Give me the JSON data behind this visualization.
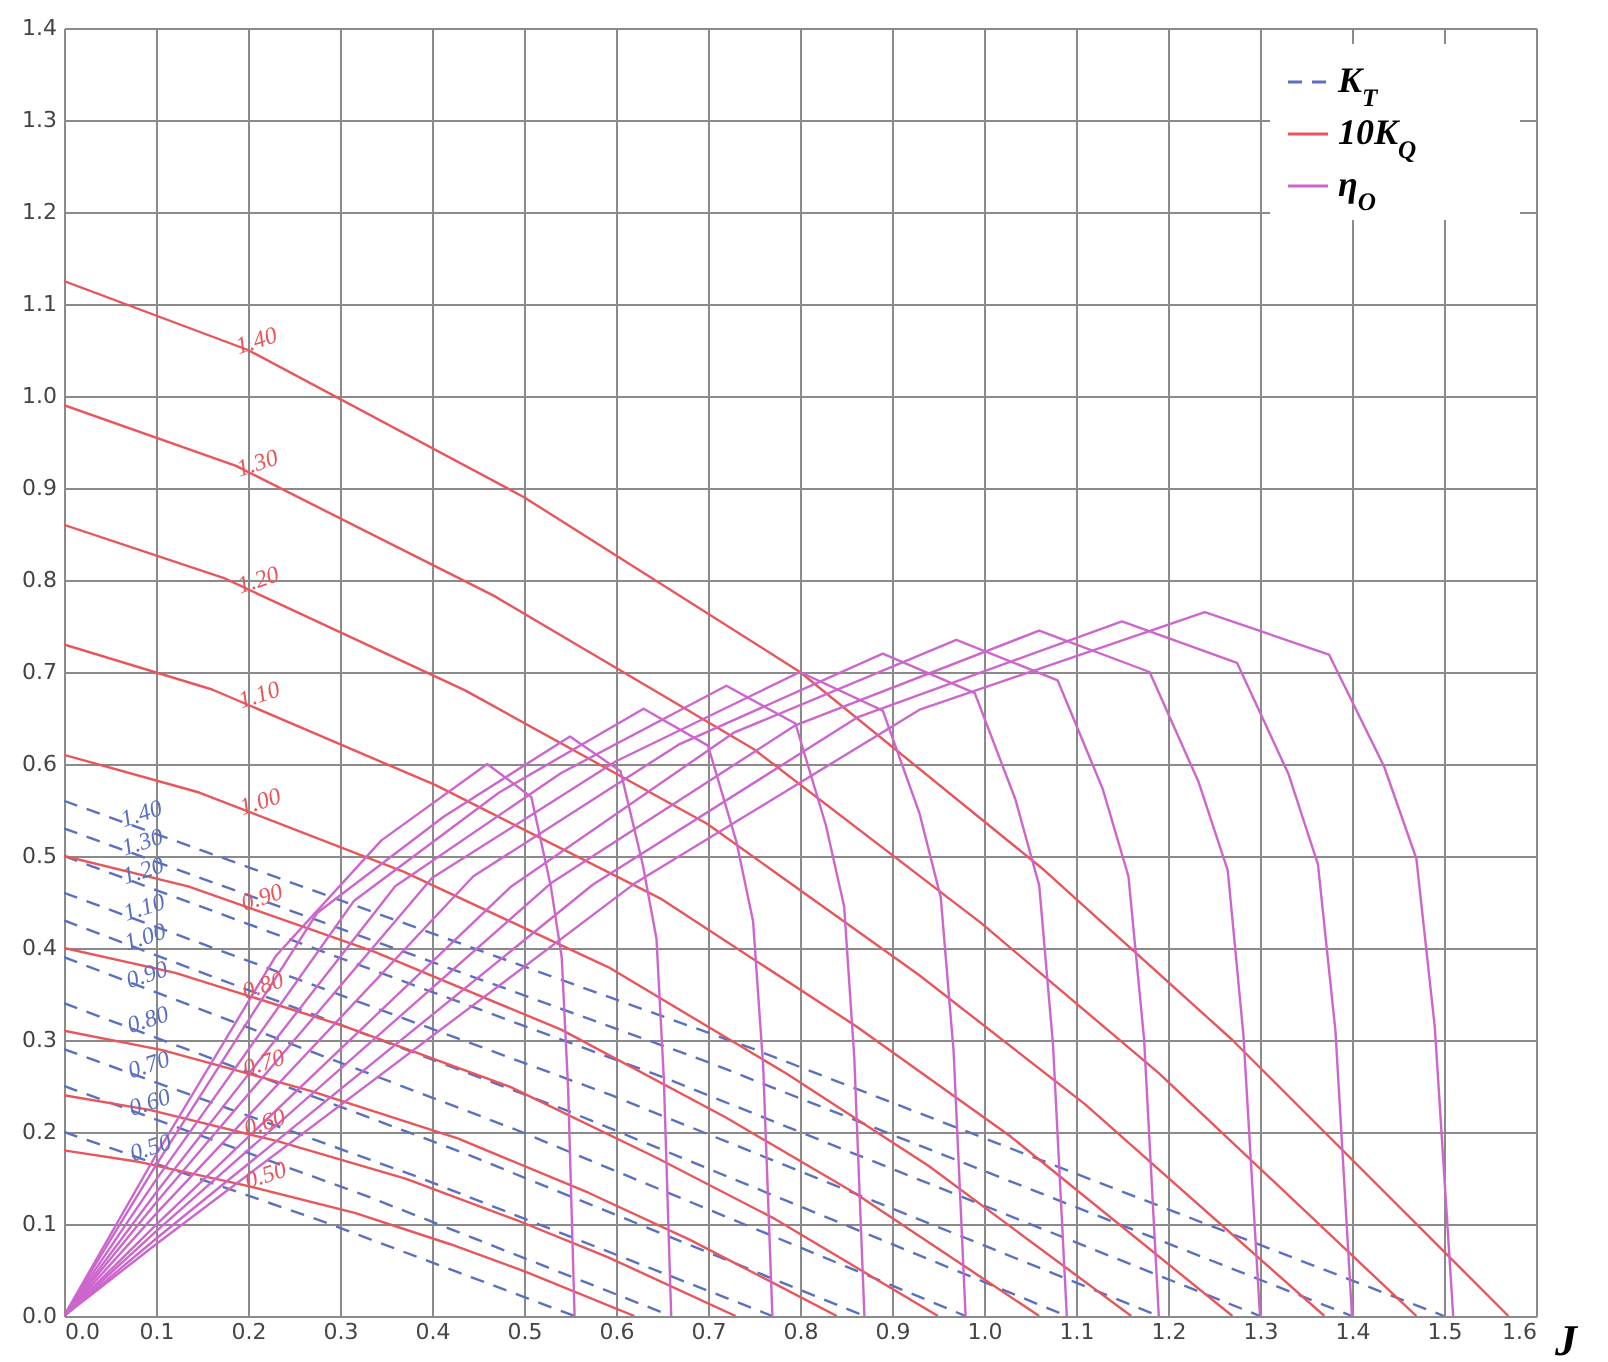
{
  "chart_data": {
    "type": "line",
    "xlabel": "J",
    "xlim": [
      0,
      1.6
    ],
    "ylim": [
      0,
      1.4
    ],
    "xticks": [
      {
        "value": 0,
        "label": "0.0"
      },
      0.1,
      0.2,
      0.3,
      0.4,
      0.5,
      0.6,
      0.7,
      0.8,
      0.9,
      {
        "value": 1,
        "label": "1.0"
      },
      1.1,
      1.2,
      1.3,
      1.4,
      1.5,
      1.6
    ],
    "yticks": [
      {
        "value": 0,
        "label": "0.0"
      },
      0.1,
      0.2,
      0.3,
      0.4,
      0.5,
      0.6,
      0.7,
      0.8,
      0.9,
      {
        "value": 1,
        "label": "1.0"
      },
      1.1,
      1.2,
      1.3,
      1.4
    ],
    "grid": true,
    "legend": "top right",
    "series": [
      {
        "name": "K$_{T}$",
        "color": "#5a6fc0",
        "line_style": "dashed",
        "x": [
          0,
          0.75,
          1.5
        ],
        "values": [
          0.56,
          0.29,
          0
        ]
      },
      {
        "color": "#5a6fc0",
        "line_style": "dashed",
        "x": [
          0,
          0.7,
          1.4
        ],
        "values": [
          0.53,
          0.276,
          0
        ]
      },
      {
        "color": "#5a6fc0",
        "line_style": "dashed",
        "x": [
          0,
          0.65,
          1.3
        ],
        "values": [
          0.5,
          0.26,
          0
        ]
      },
      {
        "color": "#5a6fc0",
        "line_style": "dashed",
        "x": [
          0,
          0.595,
          1.19
        ],
        "values": [
          0.46,
          0.24,
          0
        ]
      },
      {
        "color": "#5a6fc0",
        "line_style": "dashed",
        "x": [
          0,
          0.545,
          1.09
        ],
        "values": [
          0.43,
          0.224,
          0
        ]
      },
      {
        "color": "#5a6fc0",
        "line_style": "dashed",
        "x": [
          0,
          0.49,
          0.98
        ],
        "values": [
          0.39,
          0.203,
          0
        ]
      },
      {
        "color": "#5a6fc0",
        "line_style": "dashed",
        "x": [
          0,
          0.435,
          0.87
        ],
        "values": [
          0.34,
          0.177,
          0
        ]
      },
      {
        "color": "#5a6fc0",
        "line_style": "dashed",
        "x": [
          0,
          0.385,
          0.77
        ],
        "values": [
          0.29,
          0.151,
          0
        ]
      },
      {
        "color": "#5a6fc0",
        "line_style": "dashed",
        "x": [
          0,
          0.33,
          0.66
        ],
        "values": [
          0.25,
          0.13,
          0
        ]
      },
      {
        "color": "#5a6fc0",
        "line_style": "dashed",
        "x": [
          0,
          0.278,
          0.555
        ],
        "values": [
          0.2,
          0.104,
          0
        ]
      },
      {
        "name": "10K$_{Q}$",
        "color": "#e8555a",
        "line_style": "solid",
        "x": [
          0,
          0.2,
          0.5,
          0.8,
          1.065,
          1.27,
          1.57
        ],
        "values": [
          1.125,
          1.05,
          0.89,
          0.7,
          0.485,
          0.3,
          0
        ]
      },
      {
        "color": "#e8555a",
        "line_style": "solid",
        "x": [
          0,
          0.187,
          0.467,
          0.75,
          0.997,
          1.19,
          1.47
        ],
        "values": [
          0.99,
          0.924,
          0.783,
          0.616,
          0.427,
          0.264,
          0
        ]
      },
      {
        "color": "#e8555a",
        "line_style": "solid",
        "x": [
          0,
          0.174,
          0.436,
          0.699,
          0.929,
          1.11,
          1.37
        ],
        "values": [
          0.86,
          0.802,
          0.68,
          0.535,
          0.371,
          0.23,
          0
        ]
      },
      {
        "color": "#e8555a",
        "line_style": "solid",
        "x": [
          0,
          0.161,
          0.404,
          0.648,
          0.861,
          1.029,
          1.27
        ],
        "values": [
          0.73,
          0.681,
          0.577,
          0.454,
          0.315,
          0.195,
          0
        ]
      },
      {
        "color": "#e8555a",
        "line_style": "solid",
        "x": [
          0,
          0.147,
          0.369,
          0.592,
          0.786,
          0.94,
          1.16
        ],
        "values": [
          0.61,
          0.569,
          0.483,
          0.379,
          0.263,
          0.163,
          0
        ]
      },
      {
        "color": "#e8555a",
        "line_style": "solid",
        "x": [
          0,
          0.135,
          0.337,
          0.541,
          0.719,
          0.859,
          1.06
        ],
        "values": [
          0.5,
          0.467,
          0.396,
          0.311,
          0.216,
          0.134,
          0
        ]
      },
      {
        "color": "#e8555a",
        "line_style": "solid",
        "x": [
          0,
          0.121,
          0.302,
          0.485,
          0.644,
          0.77,
          0.95
        ],
        "values": [
          0.4,
          0.373,
          0.316,
          0.249,
          0.172,
          0.107,
          0
        ]
      },
      {
        "color": "#e8555a",
        "line_style": "solid",
        "x": [
          0,
          0.107,
          0.267,
          0.428,
          0.57,
          0.68,
          0.84
        ],
        "values": [
          0.31,
          0.289,
          0.245,
          0.193,
          0.134,
          0.083,
          0
        ]
      },
      {
        "color": "#e8555a",
        "line_style": "solid",
        "x": [
          0,
          0.093,
          0.232,
          0.372,
          0.495,
          0.591,
          0.73
        ],
        "values": [
          0.24,
          0.224,
          0.19,
          0.149,
          0.103,
          0.064,
          0
        ]
      },
      {
        "color": "#e8555a",
        "line_style": "solid",
        "x": [
          0,
          0.079,
          0.197,
          0.316,
          0.42,
          0.502,
          0.62
        ],
        "values": [
          0.18,
          0.168,
          0.142,
          0.112,
          0.078,
          0.048,
          0
        ]
      },
      {
        "name": "η$_{O}$",
        "color": "#cc66cc",
        "line_style": "solid",
        "x": [
          0,
          0.1,
          0.62,
          0.93,
          1.24,
          1.375,
          1.435,
          1.47,
          1.49,
          1.51
        ],
        "values": [
          0,
          0.078,
          0.47,
          0.659,
          0.765,
          0.719,
          0.597,
          0.497,
          0.314,
          0
        ]
      },
      {
        "color": "#cc66cc",
        "line_style": "solid",
        "x": [
          0,
          0.1,
          0.575,
          0.863,
          1.15,
          1.275,
          1.331,
          1.363,
          1.382,
          1.4
        ],
        "values": [
          0,
          0.084,
          0.469,
          0.651,
          0.755,
          0.71,
          0.589,
          0.491,
          0.31,
          0
        ]
      },
      {
        "color": "#cc66cc",
        "line_style": "solid",
        "x": [
          0,
          0.1,
          0.53,
          0.795,
          1.06,
          1.18,
          1.233,
          1.265,
          1.282,
          1.3
        ],
        "values": [
          0,
          0.092,
          0.471,
          0.642,
          0.745,
          0.7,
          0.581,
          0.484,
          0.305,
          0
        ]
      },
      {
        "color": "#cc66cc",
        "line_style": "solid",
        "x": [
          0,
          0.1,
          0.485,
          0.728,
          0.97,
          1.08,
          1.129,
          1.157,
          1.174,
          1.19
        ],
        "values": [
          0,
          0.099,
          0.466,
          0.634,
          0.735,
          0.691,
          0.573,
          0.478,
          0.301,
          0
        ]
      },
      {
        "color": "#cc66cc",
        "line_style": "solid",
        "x": [
          0,
          0.1,
          0.445,
          0.668,
          0.89,
          0.99,
          1.034,
          1.06,
          1.075,
          1.09
        ],
        "values": [
          0,
          0.111,
          0.478,
          0.621,
          0.72,
          0.677,
          0.562,
          0.468,
          0.295,
          0
        ]
      },
      {
        "color": "#cc66cc",
        "line_style": "solid",
        "x": [
          0,
          0.1,
          0.4,
          0.6,
          0.8,
          0.89,
          0.93,
          0.953,
          0.967,
          0.98
        ],
        "values": [
          0,
          0.123,
          0.476,
          0.603,
          0.7,
          0.658,
          0.546,
          0.455,
          0.287,
          0
        ]
      },
      {
        "color": "#cc66cc",
        "line_style": "solid",
        "x": [
          0,
          0.1,
          0.36,
          0.54,
          0.72,
          0.795,
          0.828,
          0.848,
          0.859,
          0.87
        ],
        "values": [
          0,
          0.134,
          0.467,
          0.59,
          0.685,
          0.644,
          0.534,
          0.445,
          0.281,
          0
        ]
      },
      {
        "color": "#cc66cc",
        "line_style": "solid",
        "x": [
          0,
          0.1,
          0.315,
          0.473,
          0.63,
          0.7,
          0.731,
          0.749,
          0.76,
          0.77
        ],
        "values": [
          0,
          0.148,
          0.451,
          0.569,
          0.66,
          0.62,
          0.515,
          0.429,
          0.271,
          0
        ]
      },
      {
        "color": "#cc66cc",
        "line_style": "solid",
        "x": [
          0,
          0.1,
          0.275,
          0.413,
          0.55,
          0.605,
          0.629,
          0.644,
          0.652,
          0.66
        ],
        "values": [
          0,
          0.164,
          0.438,
          0.543,
          0.63,
          0.592,
          0.491,
          0.41,
          0.258,
          0
        ]
      },
      {
        "color": "#cc66cc",
        "line_style": "solid",
        "x": [
          0,
          0.1,
          0.23,
          0.345,
          0.46,
          0.508,
          0.529,
          0.541,
          0.548,
          0.555
        ],
        "values": [
          0,
          0.175,
          0.391,
          0.517,
          0.6,
          0.564,
          0.468,
          0.39,
          0.246,
          0
        ]
      }
    ],
    "annotations": [
      {
        "text": "1.40",
        "x": 0.09,
        "y": 0.528
      },
      {
        "text": "1.30",
        "x": 0.091,
        "y": 0.497
      },
      {
        "text": "1.20",
        "x": 0.092,
        "y": 0.466
      },
      {
        "text": "1.10",
        "x": 0.093,
        "y": 0.426
      },
      {
        "text": "1.00",
        "x": 0.094,
        "y": 0.394
      },
      {
        "text": "0.90",
        "x": 0.096,
        "y": 0.353
      },
      {
        "text": "0.80",
        "x": 0.097,
        "y": 0.304
      },
      {
        "text": "0.70",
        "x": 0.098,
        "y": 0.255
      },
      {
        "text": "0.60",
        "x": 0.099,
        "y": 0.214
      },
      {
        "text": "0.50",
        "x": 0.1,
        "y": 0.165
      },
      {
        "text": "1.40",
        "x": 0.215,
        "y": 1.042
      },
      {
        "text": "1.30",
        "x": 0.216,
        "y": 0.909
      },
      {
        "text": "1.20",
        "x": 0.217,
        "y": 0.782
      },
      {
        "text": "1.10",
        "x": 0.218,
        "y": 0.657
      },
      {
        "text": "1.00",
        "x": 0.219,
        "y": 0.541
      },
      {
        "text": "0.90",
        "x": 0.221,
        "y": 0.437
      },
      {
        "text": "0.80",
        "x": 0.222,
        "y": 0.341
      },
      {
        "text": "0.70",
        "x": 0.223,
        "y": 0.257
      },
      {
        "text": "0.60",
        "x": 0.224,
        "y": 0.192
      },
      {
        "text": "0.50",
        "x": 0.225,
        "y": 0.135
      }
    ]
  }
}
